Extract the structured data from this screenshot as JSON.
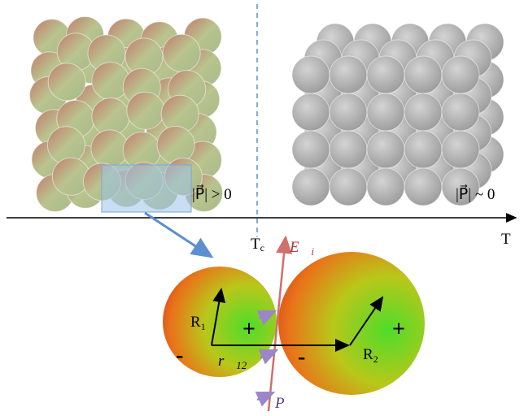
{
  "phase_low": {
    "label": "|P⃗| > 0"
  },
  "phase_high": {
    "label": "|P⃗| ~ 0"
  },
  "axis": {
    "label": "T",
    "critical": {
      "text": "T",
      "sub": "c"
    }
  },
  "dimer": {
    "field": {
      "text": "E⃗",
      "sub": "i"
    },
    "polarization": "P⃗",
    "radius1": {
      "text": "R",
      "sub": "1"
    },
    "radius2": {
      "text": "R",
      "sub": "2"
    },
    "separation": {
      "text": "r⃗",
      "sub": "12"
    },
    "charges": [
      "+",
      "-",
      "-",
      "+"
    ]
  }
}
